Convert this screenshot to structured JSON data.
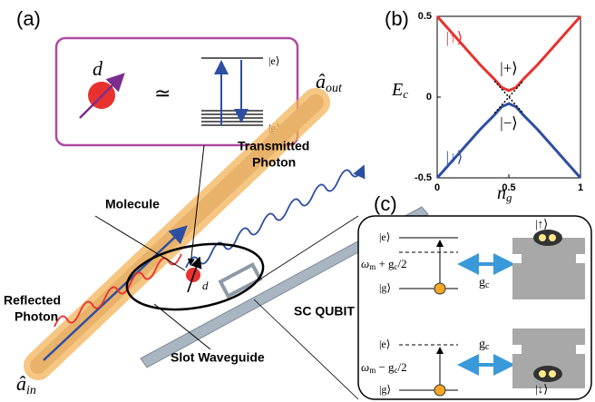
{
  "panel_a": {
    "label": "(a)",
    "dipole": "d",
    "approx": "≃",
    "level_e": "|e⟩",
    "level_g": "|g⟩",
    "molecule": "Molecule",
    "transmitted": [
      "Transmitted",
      "Photon"
    ],
    "reflected": [
      "Reflected",
      "Photon"
    ],
    "qubit": "SC QUBIT",
    "waveguide": "Slot Waveguide",
    "dipole_small": "d",
    "a_out": {
      "main": "â",
      "sub": "out"
    },
    "a_in": {
      "main": "â",
      "sub": "in"
    }
  },
  "chart_data": {
    "type": "line",
    "panel_label": "(b)",
    "ylabel": {
      "main": "E",
      "sub": "c"
    },
    "xlabel": {
      "main": "n",
      "sub": "g"
    },
    "x": [
      0,
      0.1,
      0.2,
      0.3,
      0.4,
      0.45,
      0.5,
      0.55,
      0.6,
      0.7,
      0.8,
      0.9,
      1
    ],
    "series": [
      {
        "color": "#e8322f",
        "values": [
          0.5,
          0.4,
          0.3,
          0.2,
          0.11,
          0.06,
          0.04,
          0.06,
          0.11,
          0.2,
          0.3,
          0.4,
          0.5
        ]
      },
      {
        "color": "#2e4ea1",
        "values": [
          -0.5,
          -0.4,
          -0.3,
          -0.2,
          -0.11,
          -0.06,
          -0.04,
          -0.06,
          -0.11,
          -0.2,
          -0.3,
          -0.4,
          -0.5
        ]
      },
      {
        "color": "#000000",
        "dashed": true,
        "values": [
          null,
          null,
          null,
          null,
          0.1,
          0.05,
          0,
          -0.05,
          -0.1,
          null,
          null,
          null,
          null
        ]
      },
      {
        "color": "#000000",
        "dashed": true,
        "values": [
          null,
          null,
          null,
          null,
          -0.1,
          -0.05,
          0,
          0.05,
          0.1,
          null,
          null,
          null,
          null
        ]
      }
    ],
    "annotations": [
      {
        "text": "|↑⟩",
        "color": "#e8322f",
        "x": 0.12,
        "y": 0.36
      },
      {
        "text": "|+⟩",
        "color": "#000000",
        "x": 0.5,
        "y": 0.17
      },
      {
        "text": "|−⟩",
        "color": "#000000",
        "x": 0.5,
        "y": -0.17
      },
      {
        "text": "|↓⟩",
        "color": "#2e4ea1",
        "x": 0.12,
        "y": -0.38
      }
    ],
    "xlim": [
      0,
      1
    ],
    "xticks": [
      0,
      0.5,
      1
    ],
    "ylim": [
      -0.5,
      0.5
    ],
    "yticks": [
      -0.5,
      0,
      0.5
    ]
  },
  "panel_c": {
    "label": "(c)",
    "top": {
      "e": "|e⟩",
      "g": "|g⟩",
      "freq": {
        "w": "ω",
        "wsub": "m",
        "op": " + g",
        "gsub": "c",
        "tail": "/2"
      },
      "coupling": {
        "main": "g",
        "sub": "c"
      },
      "state": "|↑⟩"
    },
    "bottom": {
      "e": "|e⟩",
      "g": "|g⟩",
      "freq": {
        "w": "ω",
        "wsub": "m",
        "op": " − g",
        "gsub": "c",
        "tail": "/2"
      },
      "coupling": {
        "main": "g",
        "sub": "c"
      },
      "state": "|↓⟩"
    }
  }
}
